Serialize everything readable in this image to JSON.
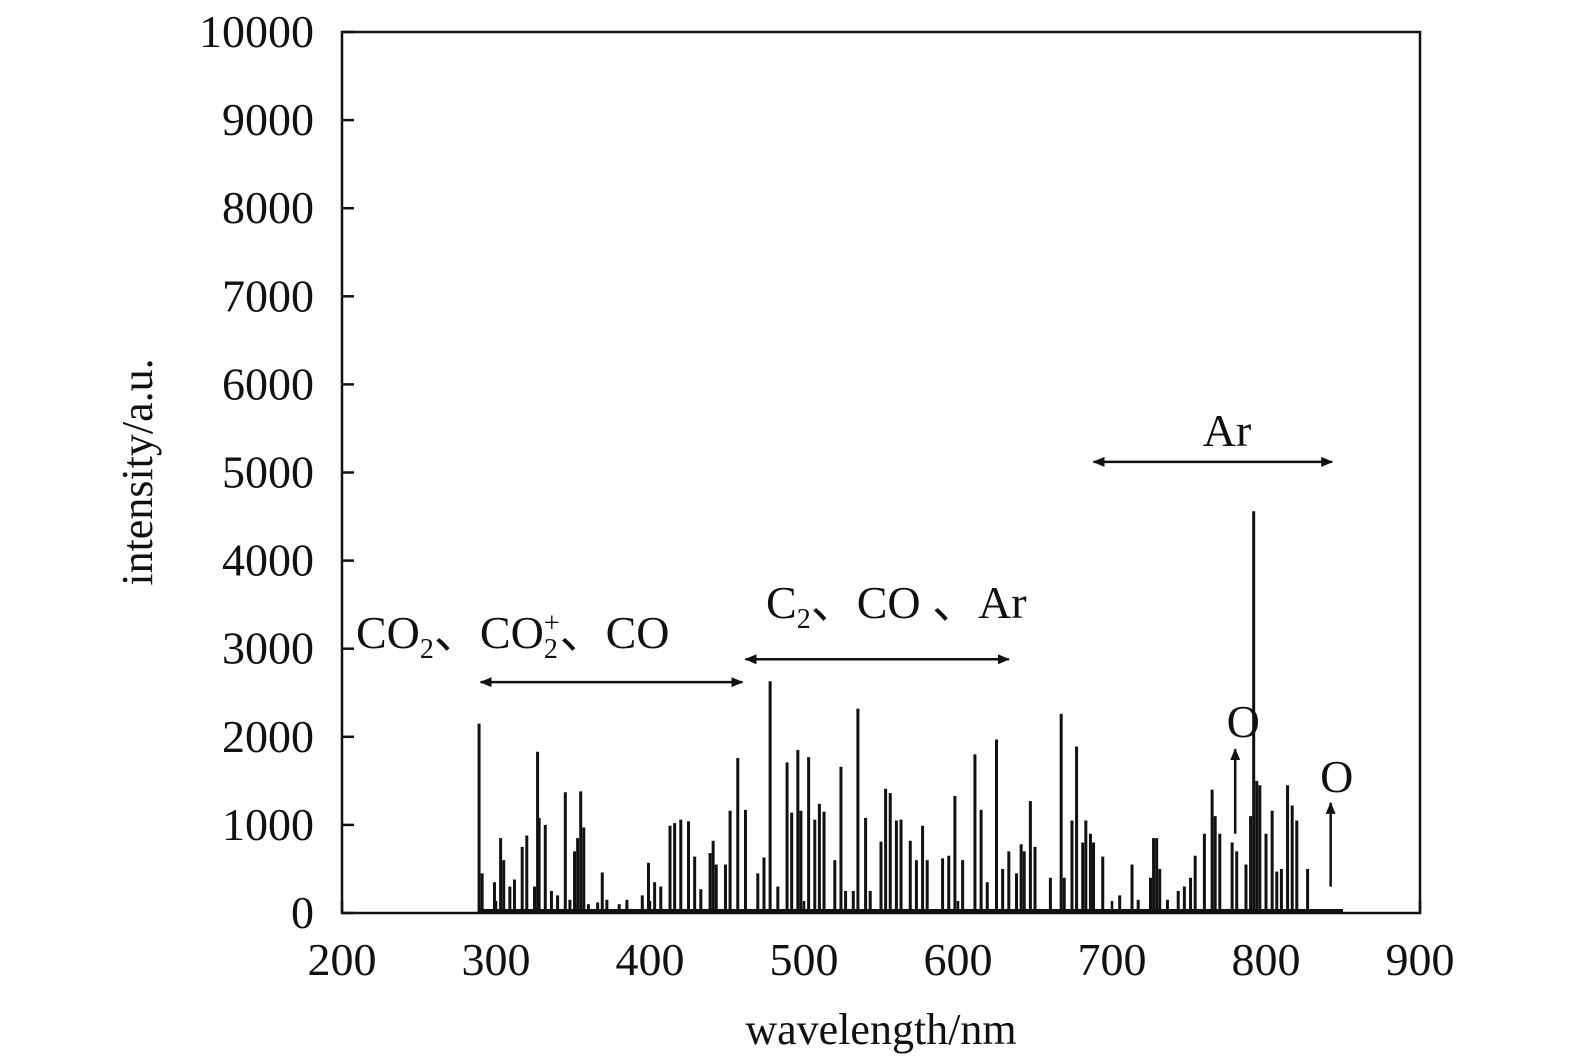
{
  "chart_data": {
    "type": "bar",
    "title": "",
    "xlabel": "wavelength/nm",
    "ylabel": "intensity/a.u.",
    "xlim": [
      200,
      900
    ],
    "ylim": [
      0,
      10000
    ],
    "x_ticks": [
      "200",
      "300",
      "400",
      "500",
      "600",
      "700",
      "800",
      "900"
    ],
    "y_ticks": [
      "0",
      "1000",
      "2000",
      "3000",
      "4000",
      "5000",
      "6000",
      "7000",
      "8000",
      "9000",
      "10000"
    ],
    "grid": false,
    "legend": "none",
    "line_color": "#111111",
    "lines": [
      [
        289,
        2150
      ],
      [
        291,
        450
      ],
      [
        299,
        350
      ],
      [
        303,
        850
      ],
      [
        305,
        600
      ],
      [
        309,
        300
      ],
      [
        312,
        380
      ],
      [
        317,
        750
      ],
      [
        320,
        880
      ],
      [
        325,
        300
      ],
      [
        327,
        1830
      ],
      [
        328,
        1080
      ],
      [
        332,
        1000
      ],
      [
        336,
        250
      ],
      [
        340,
        200
      ],
      [
        345,
        1370
      ],
      [
        348,
        150
      ],
      [
        351,
        700
      ],
      [
        353,
        850
      ],
      [
        355,
        1380
      ],
      [
        357,
        970
      ],
      [
        360,
        100
      ],
      [
        366,
        120
      ],
      [
        369,
        460
      ],
      [
        372,
        150
      ],
      [
        380,
        100
      ],
      [
        385,
        150
      ],
      [
        395,
        200
      ],
      [
        399,
        570
      ],
      [
        403,
        350
      ],
      [
        407,
        300
      ],
      [
        413,
        990
      ],
      [
        416,
        1020
      ],
      [
        420,
        1060
      ],
      [
        425,
        1040
      ],
      [
        429,
        640
      ],
      [
        433,
        270
      ],
      [
        439,
        680
      ],
      [
        441,
        820
      ],
      [
        443,
        550
      ],
      [
        449,
        550
      ],
      [
        452,
        1160
      ],
      [
        457,
        1760
      ],
      [
        462,
        1170
      ],
      [
        470,
        450
      ],
      [
        474,
        630
      ],
      [
        478,
        2630
      ],
      [
        483,
        300
      ],
      [
        489,
        1710
      ],
      [
        492,
        1140
      ],
      [
        496,
        1850
      ],
      [
        498,
        1160
      ],
      [
        503,
        1770
      ],
      [
        507,
        1060
      ],
      [
        510,
        1240
      ],
      [
        513,
        1150
      ],
      [
        520,
        600
      ],
      [
        524,
        1660
      ],
      [
        527,
        250
      ],
      [
        532,
        250
      ],
      [
        535,
        2320
      ],
      [
        540,
        1080
      ],
      [
        543,
        250
      ],
      [
        550,
        810
      ],
      [
        553,
        1410
      ],
      [
        556,
        1360
      ],
      [
        560,
        1050
      ],
      [
        563,
        1060
      ],
      [
        569,
        820
      ],
      [
        573,
        600
      ],
      [
        577,
        990
      ],
      [
        580,
        600
      ],
      [
        590,
        620
      ],
      [
        594,
        650
      ],
      [
        598,
        1330
      ],
      [
        603,
        600
      ],
      [
        611,
        1800
      ],
      [
        615,
        1170
      ],
      [
        619,
        350
      ],
      [
        625,
        1970
      ],
      [
        629,
        500
      ],
      [
        633,
        700
      ],
      [
        638,
        450
      ],
      [
        641,
        780
      ],
      [
        643,
        700
      ],
      [
        647,
        1270
      ],
      [
        650,
        750
      ],
      [
        660,
        400
      ],
      [
        667,
        2260
      ],
      [
        669,
        400
      ],
      [
        674,
        1050
      ],
      [
        677,
        1890
      ],
      [
        681,
        800
      ],
      [
        683,
        1050
      ],
      [
        686,
        900
      ],
      [
        688,
        800
      ],
      [
        694,
        640
      ],
      [
        705,
        200
      ],
      [
        713,
        550
      ],
      [
        717,
        150
      ],
      [
        725,
        400
      ],
      [
        727,
        850
      ],
      [
        729,
        850
      ],
      [
        731,
        500
      ],
      [
        736,
        150
      ],
      [
        743,
        250
      ],
      [
        747,
        300
      ],
      [
        751,
        400
      ],
      [
        754,
        650
      ],
      [
        760,
        900
      ],
      [
        765,
        1400
      ],
      [
        767,
        1100
      ],
      [
        770,
        900
      ],
      [
        778,
        800
      ],
      [
        781,
        700
      ],
      [
        787,
        550
      ],
      [
        790,
        1100
      ],
      [
        792,
        4560
      ],
      [
        794,
        1500
      ],
      [
        796,
        1450
      ],
      [
        800,
        900
      ],
      [
        804,
        1160
      ],
      [
        807,
        470
      ],
      [
        810,
        500
      ],
      [
        814,
        1450
      ],
      [
        817,
        1220
      ],
      [
        820,
        1050
      ],
      [
        827,
        500
      ]
    ],
    "annotations": [
      {
        "text_parts": [
          "CO",
          "2",
          "、CO",
          "2",
          "、CO"
        ],
        "sup": "+",
        "x_range": [
          290,
          460
        ],
        "y": 2620
      },
      {
        "text_parts": [
          "C",
          "2",
          "、CO 、Ar"
        ],
        "x_range": [
          462,
          633
        ],
        "y": 2880
      },
      {
        "text": "Ar",
        "x_range": [
          688,
          843
        ],
        "y": 5120
      },
      {
        "text": "O",
        "x": 780,
        "y_from": 900,
        "y_to": 1860
      },
      {
        "text": "O",
        "x": 842,
        "y_from": 300,
        "y_to": 1250
      }
    ]
  }
}
